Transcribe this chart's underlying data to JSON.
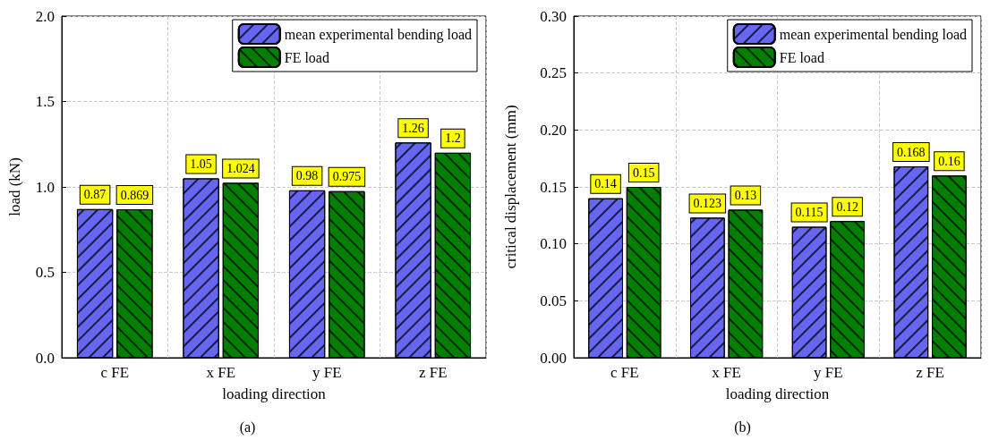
{
  "chart_data": [
    {
      "type": "bar",
      "title": "(a)",
      "xlabel": "loading direction",
      "ylabel": "load (kN)",
      "categories": [
        "c FE",
        "x FE",
        "y FE",
        "z FE"
      ],
      "series": [
        {
          "name": "mean experimental bending load",
          "color": "#6666f2",
          "values": [
            0.87,
            1.05,
            0.98,
            1.26
          ]
        },
        {
          "name": "FE load",
          "color": "#008000",
          "values": [
            0.869,
            1.024,
            0.975,
            1.2
          ]
        }
      ],
      "ylim": [
        0,
        2
      ],
      "yticks": [
        {
          "value": 0,
          "label": "0.0"
        },
        {
          "value": 0.5,
          "label": "0.5"
        },
        {
          "value": 1,
          "label": "1.0"
        },
        {
          "value": 1.5,
          "label": "1.5"
        },
        {
          "value": 2,
          "label": "2.0"
        }
      ],
      "grid": true,
      "legend": "top right",
      "data_labels": true
    },
    {
      "type": "bar",
      "title": "(b)",
      "xlabel": "loading direction",
      "ylabel": "critical displacement (mm)",
      "categories": [
        "c FE",
        "x FE",
        "y FE",
        "z FE"
      ],
      "series": [
        {
          "name": "mean experimental bending load",
          "color": "#6666f2",
          "values": [
            0.14,
            0.123,
            0.115,
            0.168
          ]
        },
        {
          "name": "FE load",
          "color": "#008000",
          "values": [
            0.15,
            0.13,
            0.12,
            0.16
          ]
        }
      ],
      "ylim": [
        0,
        0.3
      ],
      "yticks": [
        {
          "value": 0,
          "label": "0.00"
        },
        {
          "value": 0.05,
          "label": "0.05"
        },
        {
          "value": 0.1,
          "label": "0.10"
        },
        {
          "value": 0.15,
          "label": "0.15"
        },
        {
          "value": 0.2,
          "label": "0.20"
        },
        {
          "value": 0.25,
          "label": "0.25"
        },
        {
          "value": 0.3,
          "label": "0.30"
        }
      ],
      "grid": true,
      "legend": "top right",
      "data_labels": true
    }
  ]
}
